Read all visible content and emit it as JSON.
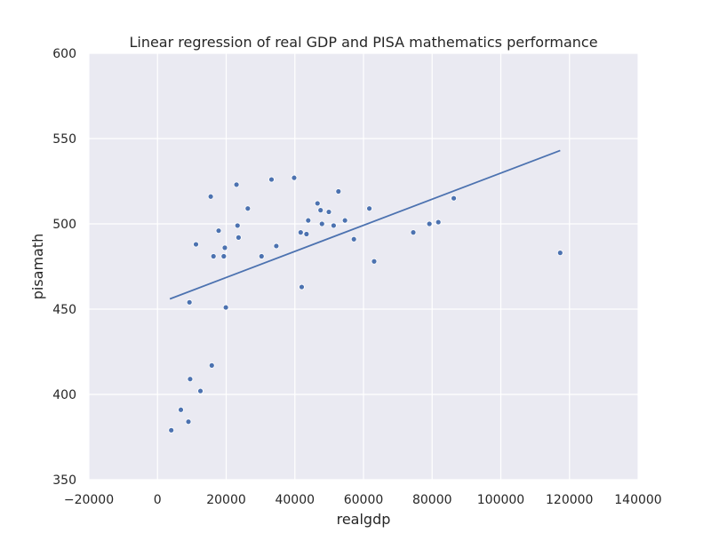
{
  "chart_data": {
    "type": "scatter",
    "title": "Linear regression of real GDP and PISA mathematics performance",
    "xlabel": "realgdp",
    "ylabel": "pisamath",
    "xlim": [
      -20000,
      140000
    ],
    "ylim": [
      350,
      600
    ],
    "xticks": [
      -20000,
      0,
      20000,
      40000,
      60000,
      80000,
      100000,
      120000,
      140000
    ],
    "yticks": [
      350,
      400,
      450,
      500,
      550,
      600
    ],
    "grid": true,
    "legend": "none",
    "colors": {
      "background": "#eaeaf2",
      "grid": "#ffffff",
      "point": "#4c72b0",
      "line": "#4c72b0"
    },
    "points": [
      {
        "x": 4000,
        "y": 379
      },
      {
        "x": 6800,
        "y": 391
      },
      {
        "x": 9000,
        "y": 384
      },
      {
        "x": 9300,
        "y": 454
      },
      {
        "x": 9500,
        "y": 409
      },
      {
        "x": 11200,
        "y": 488
      },
      {
        "x": 12500,
        "y": 402
      },
      {
        "x": 15500,
        "y": 516
      },
      {
        "x": 15800,
        "y": 417
      },
      {
        "x": 16300,
        "y": 481
      },
      {
        "x": 17800,
        "y": 496
      },
      {
        "x": 19300,
        "y": 481
      },
      {
        "x": 19600,
        "y": 486
      },
      {
        "x": 19900,
        "y": 451
      },
      {
        "x": 23000,
        "y": 523
      },
      {
        "x": 23300,
        "y": 499
      },
      {
        "x": 23600,
        "y": 492
      },
      {
        "x": 26300,
        "y": 509
      },
      {
        "x": 30300,
        "y": 481
      },
      {
        "x": 33200,
        "y": 526
      },
      {
        "x": 34600,
        "y": 487
      },
      {
        "x": 39800,
        "y": 527
      },
      {
        "x": 41700,
        "y": 495
      },
      {
        "x": 42000,
        "y": 463
      },
      {
        "x": 43400,
        "y": 494
      },
      {
        "x": 43900,
        "y": 502
      },
      {
        "x": 46600,
        "y": 512
      },
      {
        "x": 47500,
        "y": 508
      },
      {
        "x": 47900,
        "y": 500
      },
      {
        "x": 49900,
        "y": 507
      },
      {
        "x": 51300,
        "y": 499
      },
      {
        "x": 52700,
        "y": 519
      },
      {
        "x": 54600,
        "y": 502
      },
      {
        "x": 57200,
        "y": 491
      },
      {
        "x": 61700,
        "y": 509
      },
      {
        "x": 63100,
        "y": 478
      },
      {
        "x": 74500,
        "y": 495
      },
      {
        "x": 79200,
        "y": 500
      },
      {
        "x": 81800,
        "y": 501
      },
      {
        "x": 86300,
        "y": 515
      },
      {
        "x": 117300,
        "y": 483
      }
    ],
    "regression_line": {
      "x": [
        3600,
        117300
      ],
      "y": [
        456,
        543
      ]
    }
  }
}
